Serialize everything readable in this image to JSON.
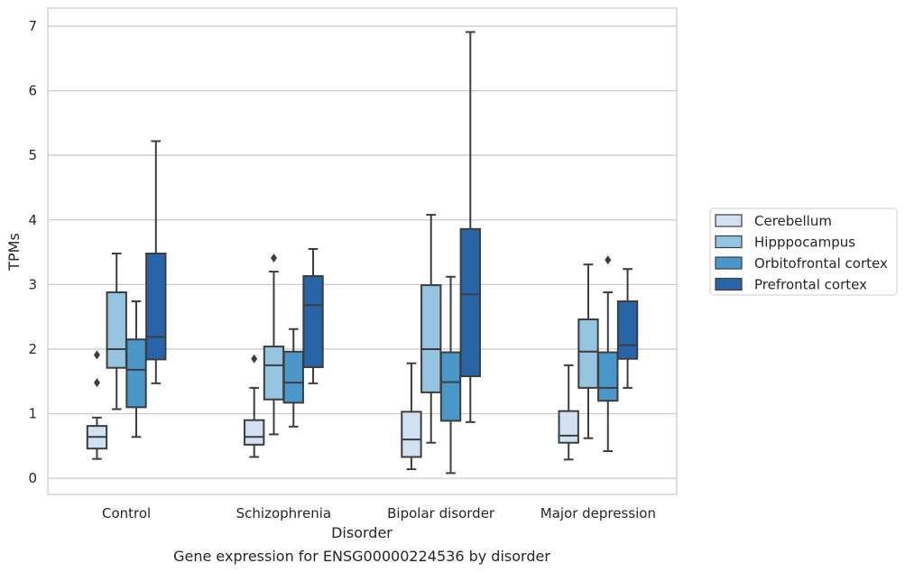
{
  "caption": "Gene expression for ENSG00000224536 by disorder",
  "chart_data": {
    "type": "box",
    "xlabel": "Disorder",
    "ylabel": "TPMs",
    "ylim": [
      -0.25,
      7.28
    ],
    "yticks": [
      0,
      1,
      2,
      3,
      4,
      5,
      6,
      7
    ],
    "grid": true,
    "legend_position": "right",
    "categories": [
      "Control",
      "Schizophrenia",
      "Bipolar disorder",
      "Major depression"
    ],
    "series": [
      {
        "name": "Cerebellum",
        "color": "#d0e1f2",
        "boxes": [
          {
            "whisker_low": 0.3,
            "q1": 0.46,
            "median": 0.64,
            "q3": 0.81,
            "whisker_high": 0.94,
            "outliers": [
              1.48,
              1.91
            ]
          },
          {
            "whisker_low": 0.33,
            "q1": 0.52,
            "median": 0.64,
            "q3": 0.9,
            "whisker_high": 1.4,
            "outliers": [
              1.85
            ]
          },
          {
            "whisker_low": 0.14,
            "q1": 0.33,
            "median": 0.6,
            "q3": 1.03,
            "whisker_high": 1.78,
            "outliers": []
          },
          {
            "whisker_low": 0.29,
            "q1": 0.55,
            "median": 0.66,
            "q3": 1.04,
            "whisker_high": 1.75,
            "outliers": []
          }
        ]
      },
      {
        "name": "Hipppocampus",
        "color": "#94c4df",
        "boxes": [
          {
            "whisker_low": 1.07,
            "q1": 1.71,
            "median": 2.0,
            "q3": 2.88,
            "whisker_high": 3.48,
            "outliers": []
          },
          {
            "whisker_low": 0.68,
            "q1": 1.22,
            "median": 1.75,
            "q3": 2.04,
            "whisker_high": 3.2,
            "outliers": [
              3.41
            ]
          },
          {
            "whisker_low": 0.55,
            "q1": 1.33,
            "median": 2.0,
            "q3": 2.99,
            "whisker_high": 4.08,
            "outliers": []
          },
          {
            "whisker_low": 0.62,
            "q1": 1.4,
            "median": 1.96,
            "q3": 2.46,
            "whisker_high": 3.31,
            "outliers": []
          }
        ]
      },
      {
        "name": "Orbitofrontal cortex",
        "color": "#4a98c9",
        "boxes": [
          {
            "whisker_low": 0.64,
            "q1": 1.1,
            "median": 1.68,
            "q3": 2.15,
            "whisker_high": 2.74,
            "outliers": []
          },
          {
            "whisker_low": 0.8,
            "q1": 1.17,
            "median": 1.48,
            "q3": 1.96,
            "whisker_high": 2.31,
            "outliers": []
          },
          {
            "whisker_low": 0.08,
            "q1": 0.89,
            "median": 1.49,
            "q3": 1.95,
            "whisker_high": 3.12,
            "outliers": []
          },
          {
            "whisker_low": 0.42,
            "q1": 1.2,
            "median": 1.4,
            "q3": 1.95,
            "whisker_high": 2.88,
            "outliers": [
              3.38
            ]
          }
        ]
      },
      {
        "name": "Prefrontal cortex",
        "color": "#2764a8",
        "boxes": [
          {
            "whisker_low": 1.47,
            "q1": 1.84,
            "median": 2.19,
            "q3": 3.48,
            "whisker_high": 5.22,
            "outliers": []
          },
          {
            "whisker_low": 1.47,
            "q1": 1.72,
            "median": 2.68,
            "q3": 3.13,
            "whisker_high": 3.55,
            "outliers": []
          },
          {
            "whisker_low": 0.87,
            "q1": 1.58,
            "median": 2.85,
            "q3": 3.86,
            "whisker_high": 6.91,
            "outliers": []
          },
          {
            "whisker_low": 1.4,
            "q1": 1.85,
            "median": 2.06,
            "q3": 2.74,
            "whisker_high": 3.24,
            "outliers": []
          }
        ]
      }
    ]
  }
}
